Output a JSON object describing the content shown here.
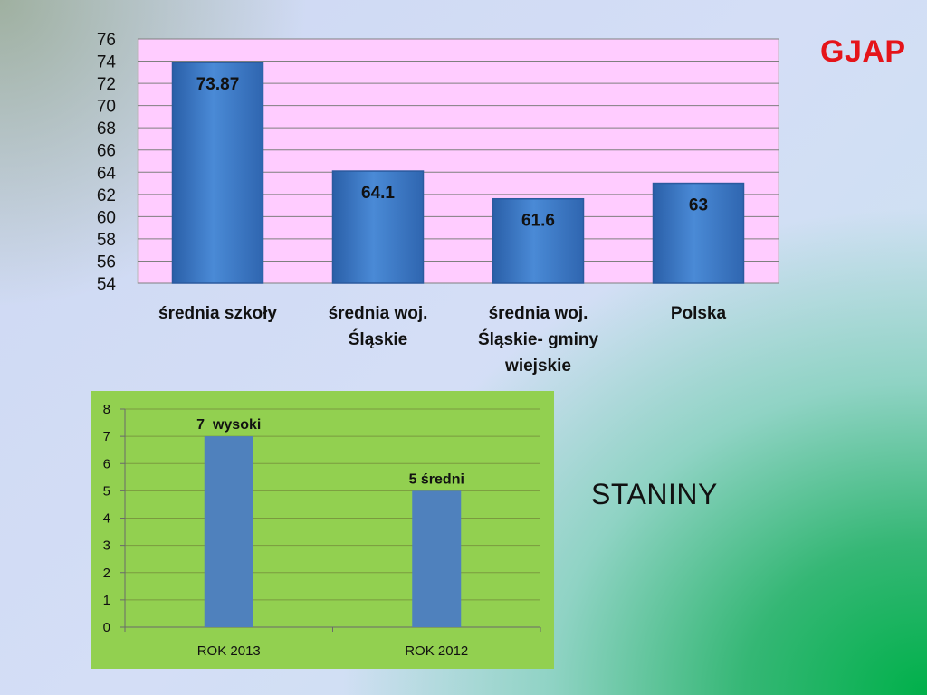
{
  "brand": "GJAP",
  "side_label": "STANINY",
  "colors": {
    "plot1_bg": "#ffccff",
    "bar1": "#3b78c8",
    "plot2_bg": "#92d050",
    "bar2": "#4f81bd",
    "brand": "#e5141a"
  },
  "chart_data": [
    {
      "type": "bar",
      "categories": [
        "średnia szkoły",
        "średnia woj. Śląskie",
        "średnia woj. Śląskie- gminy wiejskie",
        "Polska"
      ],
      "values": [
        73.87,
        64.1,
        61.6,
        63
      ],
      "data_labels": [
        "73.87",
        "64.1",
        "61.6",
        "63"
      ],
      "ylim": [
        54,
        76
      ],
      "yticks": [
        54,
        56,
        58,
        60,
        62,
        64,
        66,
        68,
        70,
        72,
        74,
        76
      ],
      "grid": true,
      "legend": "none"
    },
    {
      "type": "bar",
      "categories": [
        "ROK 2013",
        "ROK 2012"
      ],
      "values": [
        7,
        5
      ],
      "data_labels": [
        "7  wysoki",
        "5 średni"
      ],
      "ylim": [
        0,
        8
      ],
      "yticks": [
        0,
        1,
        2,
        3,
        4,
        5,
        6,
        7,
        8
      ],
      "grid": true,
      "legend": "none"
    }
  ]
}
